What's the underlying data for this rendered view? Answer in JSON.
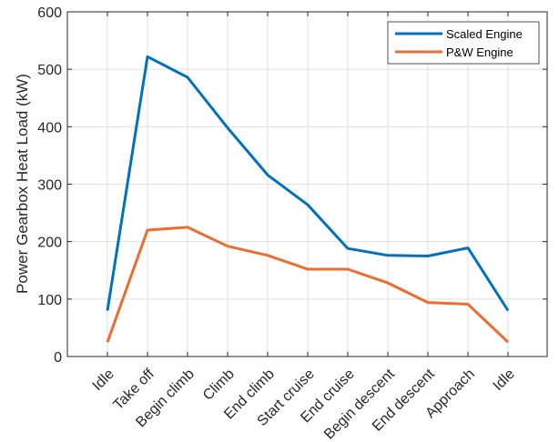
{
  "chart_data": {
    "type": "line",
    "title": "",
    "xlabel": "",
    "ylabel": "Power Gearbox Heat Load (kW)",
    "ylim": [
      0,
      600
    ],
    "yticks": [
      0,
      100,
      200,
      300,
      400,
      500,
      600
    ],
    "grid": true,
    "legend_position": "top-right",
    "categories": [
      "Idle",
      "Take off",
      "Begin climb",
      "Climb",
      "End climb",
      "Start cruise",
      "End cruise",
      "Begin descent",
      "End descent",
      "Approach",
      "Idle"
    ],
    "series": [
      {
        "name": "Scaled Engine",
        "color": "#0072BD",
        "values": [
          80,
          522,
          486,
          398,
          316,
          264,
          188,
          176,
          175,
          189,
          80
        ]
      },
      {
        "name": "P&W Engine",
        "color": "#ED6C2E",
        "values": [
          25,
          220,
          225,
          192,
          176,
          152,
          152,
          128,
          94,
          91,
          25
        ]
      }
    ]
  }
}
